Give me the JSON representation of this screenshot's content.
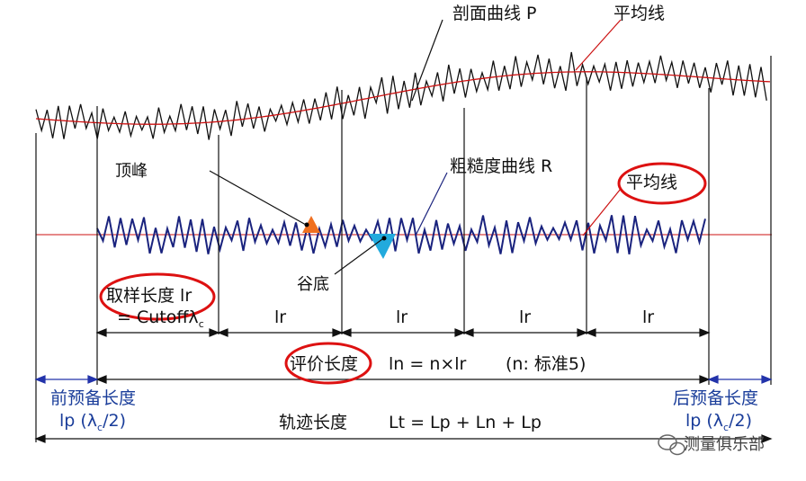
{
  "labels": {
    "profile_curve": "剖面曲线 P",
    "mean_line_top": "平均线",
    "peak": "顶峰",
    "roughness_curve": "粗糙度曲线 R",
    "mean_line_mid": "平均线",
    "valley": "谷底",
    "sampling_length": "取样长度 lr",
    "cutoff": "= Cutoffλ",
    "cutoff_sub": "c",
    "lr_segments": [
      "lr",
      "lr",
      "lr",
      "lr"
    ],
    "evaluation_length": "评价长度",
    "evaluation_formula": "ln = n×lr",
    "evaluation_note": "(n:   标准5)",
    "pre_travel": "前预备长度",
    "pre_travel_formula_a": "lp (λ",
    "pre_travel_formula_sub": "c",
    "pre_travel_formula_b": "/2)",
    "post_travel": "后预备长度",
    "post_travel_formula_a": "lp (λ",
    "post_travel_formula_sub": "c",
    "post_travel_formula_b": "/2)",
    "traverse_length": "轨迹长度",
    "traverse_formula": "Lt = Lp + Ln + Lp"
  },
  "watermark": "测量俱乐部",
  "colors": {
    "profile": "#111111",
    "mean_line": "#cc1111",
    "roughness": "#1a237e",
    "highlight_circle": "#dd1111",
    "peak_fill": "#f07020",
    "valley_fill": "#22aadd",
    "pre_post_blue": "#2233aa"
  }
}
